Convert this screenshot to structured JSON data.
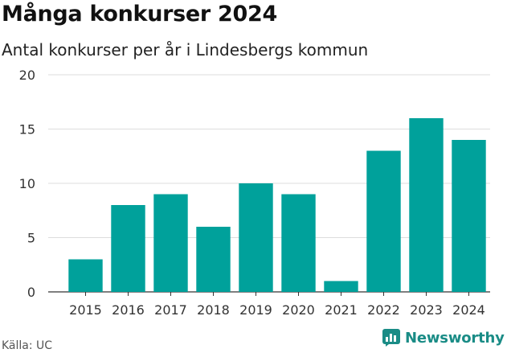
{
  "title": "Många konkurser 2024",
  "subtitle": "Antal konkurser per år i Lindesbergs kommun",
  "source": "Källa: UC",
  "brand": {
    "name": "Newsworthy",
    "icon": "newsworthy-logo-icon"
  },
  "colors": {
    "bar": "#00a19b",
    "grid": "#dddddd",
    "axis": "#333333",
    "brand": "#1a8c86"
  },
  "chart_data": {
    "type": "bar",
    "categories": [
      "2015",
      "2016",
      "2017",
      "2018",
      "2019",
      "2020",
      "2021",
      "2022",
      "2023",
      "2024"
    ],
    "values": [
      3,
      8,
      9,
      6,
      10,
      9,
      1,
      13,
      16,
      14
    ],
    "yticks": [
      0,
      5,
      10,
      15,
      20
    ],
    "ylim": [
      0,
      20
    ],
    "grid": true
  }
}
